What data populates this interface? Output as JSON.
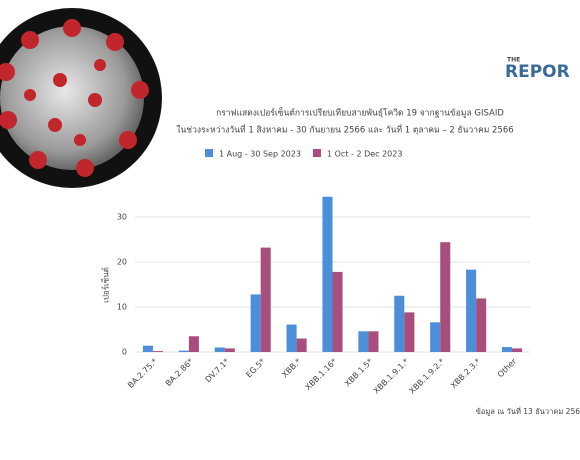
{
  "chart_data": {
    "type": "bar",
    "title": "กราฟแสดงเปอร์เซ็นต์การเปรียบเทียบสายพันธุ์โควิด 19 จากฐานข้อมูล GISAID",
    "subtitle": "ในช่วงระหว่างวันที่ 1 สิงหาคม - 30 กันยายน 2566 และ วันที่ 1 ตุลาคม – 2 ธันวาคม 2566",
    "y_label": "เปอร์เซ็นต์",
    "categories": [
      "BA.2.75.*",
      "BA.2.86*",
      "DV.7.1*",
      "EG.5*",
      "XBB.*",
      "XBB.1.16*",
      "XBB.1.5*",
      "XBB.1.9.1.*",
      "XBB.1.9.2.*",
      "XBB.2.3.*",
      "Other"
    ],
    "series": [
      {
        "name": "1 Aug - 30 Sep 2023",
        "color": "#4a8fd8",
        "values": [
          1.4,
          0.3,
          1.0,
          12.8,
          6.1,
          34.5,
          4.6,
          12.5,
          6.6,
          18.3,
          1.1
        ]
      },
      {
        "name": "1 Oct - 2 Dec 2023",
        "color": "#a84e7c",
        "values": [
          0.2,
          3.5,
          0.8,
          23.2,
          3.0,
          17.8,
          4.6,
          8.8,
          24.4,
          11.9,
          0.8
        ]
      }
    ],
    "ylim": [
      0,
      36
    ],
    "yticks": [
      0,
      10,
      20,
      30
    ],
    "grid": true,
    "legend": "top",
    "note": "ข้อมูล ณ วันที่ 13 ธันวาคม 256"
  },
  "logo": {
    "top": "THE",
    "main": "REPOR"
  }
}
